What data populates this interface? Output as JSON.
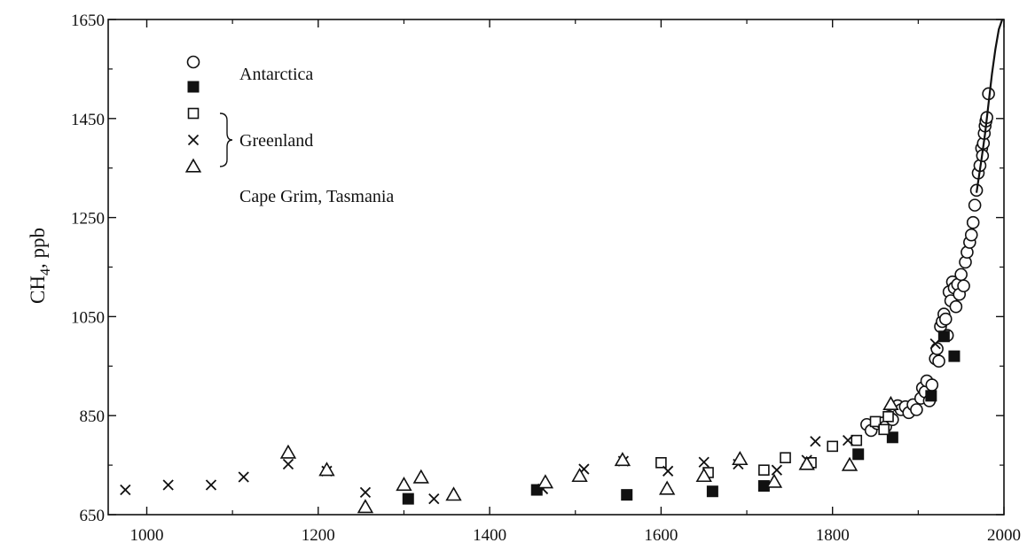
{
  "chart_data": {
    "type": "scatter",
    "xlim": [
      955,
      2000
    ],
    "ylim": [
      650,
      1650
    ],
    "xticks": [
      1000,
      1200,
      1400,
      1600,
      1800,
      2000
    ],
    "yticks": [
      650,
      850,
      1050,
      1250,
      1450,
      1650
    ],
    "ylabel": {
      "base": "CH",
      "sub": "4",
      "rest": ", ppb"
    },
    "grid": false,
    "legend": {
      "placement": "top-left",
      "entries": [
        "Antarctica",
        "Greenland",
        "Cape Grim, Tasmania"
      ]
    },
    "series": [
      {
        "marker": "open-circle",
        "points": [
          [
            1840,
            832
          ],
          [
            1845,
            820
          ],
          [
            1852,
            834
          ],
          [
            1858,
            835
          ],
          [
            1862,
            828
          ],
          [
            1866,
            848
          ],
          [
            1870,
            842
          ],
          [
            1876,
            870
          ],
          [
            1880,
            862
          ],
          [
            1885,
            868
          ],
          [
            1889,
            856
          ],
          [
            1894,
            872
          ],
          [
            1898,
            862
          ],
          [
            1903,
            885
          ],
          [
            1905,
            906
          ],
          [
            1908,
            898
          ],
          [
            1910,
            920
          ],
          [
            1913,
            880
          ],
          [
            1916,
            912
          ],
          [
            1920,
            965
          ],
          [
            1922,
            985
          ],
          [
            1924,
            960
          ],
          [
            1926,
            1030
          ],
          [
            1928,
            1040
          ],
          [
            1930,
            1055
          ],
          [
            1932,
            1045
          ],
          [
            1934,
            1012
          ],
          [
            1936,
            1100
          ],
          [
            1938,
            1082
          ],
          [
            1940,
            1120
          ],
          [
            1942,
            1108
          ],
          [
            1944,
            1070
          ],
          [
            1946,
            1115
          ],
          [
            1948,
            1095
          ],
          [
            1950,
            1135
          ],
          [
            1953,
            1112
          ],
          [
            1955,
            1160
          ],
          [
            1957,
            1180
          ],
          [
            1960,
            1200
          ],
          [
            1962,
            1215
          ],
          [
            1964,
            1240
          ],
          [
            1966,
            1275
          ],
          [
            1968,
            1305
          ],
          [
            1970,
            1340
          ],
          [
            1972,
            1355
          ],
          [
            1974,
            1390
          ],
          [
            1975,
            1375
          ],
          [
            1976,
            1400
          ],
          [
            1977,
            1420
          ],
          [
            1978,
            1435
          ],
          [
            1979,
            1445
          ],
          [
            1980,
            1452
          ],
          [
            1982,
            1500
          ]
        ]
      },
      {
        "marker": "filled-square",
        "points": [
          [
            1455,
            700
          ],
          [
            1305,
            682
          ],
          [
            1560,
            690
          ],
          [
            1660,
            697
          ],
          [
            1720,
            708
          ],
          [
            1830,
            772
          ],
          [
            1870,
            806
          ],
          [
            1915,
            890
          ],
          [
            1930,
            1010
          ],
          [
            1942,
            970
          ]
        ]
      },
      {
        "marker": "open-square",
        "points": [
          [
            1600,
            755
          ],
          [
            1655,
            735
          ],
          [
            1720,
            740
          ],
          [
            1745,
            765
          ],
          [
            1775,
            755
          ],
          [
            1800,
            788
          ],
          [
            1828,
            800
          ],
          [
            1850,
            838
          ],
          [
            1860,
            822
          ],
          [
            1865,
            848
          ]
        ]
      },
      {
        "marker": "cross",
        "points": [
          [
            975,
            700
          ],
          [
            1025,
            710
          ],
          [
            1075,
            710
          ],
          [
            1113,
            726
          ],
          [
            1165,
            752
          ],
          [
            1210,
            738
          ],
          [
            1255,
            695
          ],
          [
            1335,
            682
          ],
          [
            1462,
            702
          ],
          [
            1510,
            742
          ],
          [
            1556,
            758
          ],
          [
            1608,
            738
          ],
          [
            1650,
            756
          ],
          [
            1690,
            752
          ],
          [
            1735,
            740
          ],
          [
            1770,
            760
          ],
          [
            1780,
            798
          ],
          [
            1818,
            800
          ],
          [
            1920,
            995
          ]
        ]
      },
      {
        "marker": "open-triangle",
        "points": [
          [
            1165,
            775
          ],
          [
            1210,
            740
          ],
          [
            1255,
            665
          ],
          [
            1300,
            710
          ],
          [
            1320,
            725
          ],
          [
            1358,
            690
          ],
          [
            1465,
            715
          ],
          [
            1505,
            728
          ],
          [
            1555,
            760
          ],
          [
            1607,
            702
          ],
          [
            1650,
            728
          ],
          [
            1692,
            762
          ],
          [
            1732,
            716
          ],
          [
            1770,
            752
          ],
          [
            1820,
            750
          ],
          [
            1868,
            873
          ]
        ]
      }
    ],
    "trend_line": [
      [
        1968,
        1300
      ],
      [
        1974,
        1370
      ],
      [
        1978,
        1420
      ],
      [
        1982,
        1480
      ],
      [
        1986,
        1540
      ],
      [
        1990,
        1590
      ],
      [
        1994,
        1630
      ],
      [
        1998,
        1650
      ]
    ]
  }
}
